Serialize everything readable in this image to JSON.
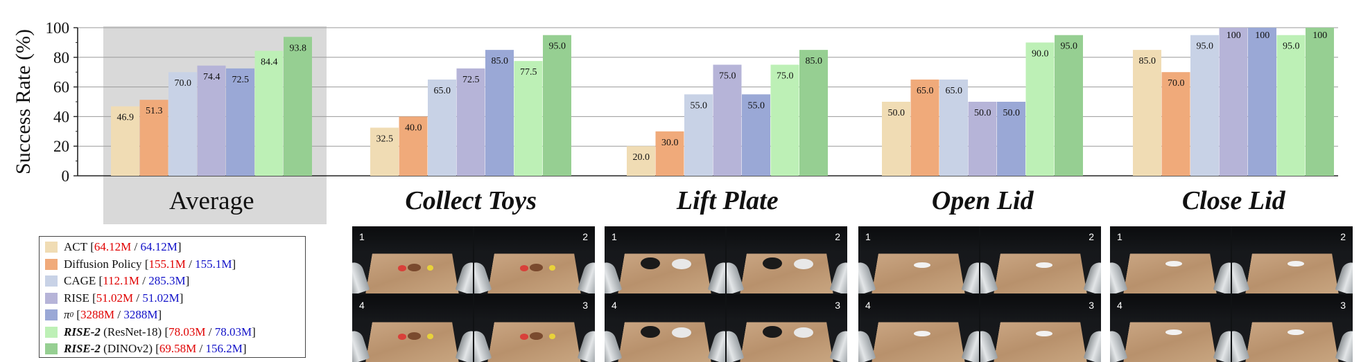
{
  "chart_data": {
    "type": "bar",
    "ylabel": "Success Rate (%)",
    "ylim": [
      0,
      100
    ],
    "yticks": [
      0,
      20,
      40,
      60,
      80,
      100
    ],
    "grid": true,
    "categories": [
      "Average",
      "Collect Toys",
      "Lift Plate",
      "Open Lid",
      "Close Lid"
    ],
    "highlighted_category": "Average",
    "series": [
      {
        "name": "ACT",
        "color": "#f0dcb4",
        "values": [
          46.9,
          32.5,
          20.0,
          50.0,
          85.0
        ]
      },
      {
        "name": "Diffusion Policy",
        "color": "#f0aa7a",
        "values": [
          51.3,
          40.0,
          30.0,
          65.0,
          70.0
        ]
      },
      {
        "name": "CAGE",
        "color": "#c8d2e6",
        "values": [
          70.0,
          65.0,
          55.0,
          65.0,
          95.0
        ]
      },
      {
        "name": "RISE",
        "color": "#b6b4d8",
        "values": [
          74.4,
          72.5,
          75.0,
          50.0,
          100
        ]
      },
      {
        "name": "π0",
        "color": "#9aa8d6",
        "values": [
          72.5,
          85.0,
          55.0,
          50.0,
          100
        ]
      },
      {
        "name": "RISE-2 (ResNet-18)",
        "color": "#bdf0b6",
        "values": [
          84.4,
          77.5,
          75.0,
          90.0,
          95.0
        ]
      },
      {
        "name": "RISE-2 (DINOv2)",
        "color": "#96cf92",
        "values": [
          93.8,
          95.0,
          85.0,
          95.0,
          100
        ]
      }
    ],
    "data_labels": [
      [
        "46.9",
        "51.3",
        "70.0",
        "74.4",
        "72.5",
        "84.4",
        "93.8"
      ],
      [
        "32.5",
        "40.0",
        "65.0",
        "72.5",
        "85.0",
        "77.5",
        "95.0"
      ],
      [
        "20.0",
        "30.0",
        "55.0",
        "75.0",
        "55.0",
        "75.0",
        "85.0"
      ],
      [
        "50.0",
        "65.0",
        "65.0",
        "50.0",
        "50.0",
        "90.0",
        "95.0"
      ],
      [
        "85.0",
        "70.0",
        "95.0",
        "100",
        "100",
        "95.0",
        "100"
      ]
    ]
  },
  "legend": [
    {
      "name": "ACT",
      "style": "plain",
      "extra": "",
      "param_a": "64.12M",
      "param_b": "64.12M"
    },
    {
      "name": "Diffusion Policy",
      "style": "plain",
      "extra": "",
      "param_a": "155.1M",
      "param_b": "155.1M"
    },
    {
      "name": "CAGE",
      "style": "plain",
      "extra": "",
      "param_a": "112.1M",
      "param_b": "285.3M"
    },
    {
      "name": "RISE",
      "style": "plain",
      "extra": "",
      "param_a": "51.02M",
      "param_b": "51.02M"
    },
    {
      "name": "π",
      "sub": "0",
      "style": "pi",
      "extra": "",
      "param_a": "3288M",
      "param_b": "3288M"
    },
    {
      "name": "RISE-2",
      "style": "bolditalic",
      "extra": " (ResNet-18) ",
      "param_a": "78.03M",
      "param_b": "78.03M"
    },
    {
      "name": "RISE-2",
      "style": "bolditalic",
      "extra": " (DINOv2) ",
      "param_a": "69.58M",
      "param_b": "156.2M"
    }
  ],
  "task_images": [
    {
      "task": "Collect Toys",
      "numbers": [
        "1",
        "2",
        "4",
        "3"
      ]
    },
    {
      "task": "Lift Plate",
      "numbers": [
        "1",
        "2",
        "4",
        "3"
      ]
    },
    {
      "task": "Open Lid",
      "numbers": [
        "1",
        "2",
        "4",
        "3"
      ]
    },
    {
      "task": "Close Lid",
      "numbers": [
        "1",
        "2",
        "4",
        "3"
      ]
    }
  ]
}
